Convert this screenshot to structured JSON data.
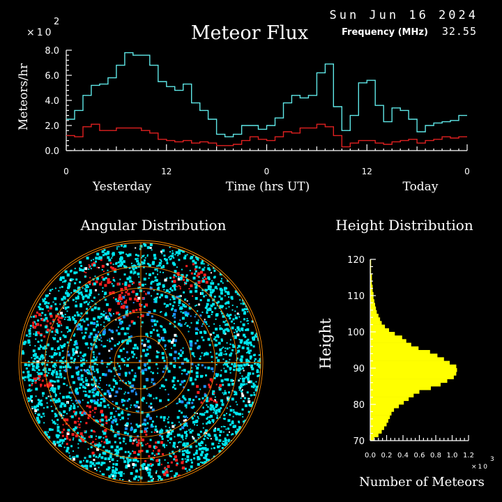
{
  "header": {
    "date": "Sun Jun 16 2024",
    "title": "Meteor Flux",
    "frequency_label": "Frequency (MHz)",
    "frequency_value": "32.55",
    "exponent_base": "×10",
    "exponent_power": "2"
  },
  "colors": {
    "background": "#000000",
    "axis": "#ffffff",
    "series_primary": "#5fe8e8",
    "series_secondary": "#e02020",
    "histogram": "#ffff00",
    "polar_fill": "#00e5ee",
    "polar_secondary": "#1e90ff",
    "polar_tertiary": "#ff2020",
    "polar_grid": "#ff8c00"
  },
  "flux_chart": {
    "ylabel": "Meteors/hr",
    "xlabel": "Time (hrs UT)",
    "yesterday_label": "Yesterday",
    "today_label": "Today",
    "x_ticks": [
      "0",
      "12",
      "0",
      "12",
      "0"
    ],
    "y_ticks": [
      "0.0",
      "2.0",
      "4.0",
      "6.0",
      "8.0"
    ]
  },
  "angular": {
    "title": "Angular Distribution"
  },
  "height_chart": {
    "title": "Height Distribution",
    "ylabel": "Height",
    "xlabel": "Number of Meteors",
    "y_ticks": [
      "70",
      "80",
      "90",
      "100",
      "110",
      "120"
    ],
    "x_ticks": [
      "0.0",
      "0.2",
      "0.4",
      "0.6",
      "0.8",
      "1.0",
      "1.2"
    ],
    "x_exponent_base": "×10",
    "x_exponent_power": "3"
  },
  "chart_data": [
    {
      "type": "line",
      "title": "Meteor Flux",
      "xlabel": "Time (hrs UT)",
      "ylabel": "Meteors/hr",
      "y_multiplier": 100,
      "xlim": [
        0,
        48
      ],
      "ylim": [
        0,
        8
      ],
      "x": [
        0,
        1,
        2,
        3,
        4,
        5,
        6,
        7,
        8,
        9,
        10,
        11,
        12,
        13,
        14,
        15,
        16,
        17,
        18,
        19,
        20,
        21,
        22,
        23,
        24,
        25,
        26,
        27,
        28,
        29,
        30,
        31,
        32,
        33,
        34,
        35,
        36,
        37,
        38,
        39,
        40,
        41,
        42,
        43,
        44,
        45,
        46,
        47
      ],
      "series": [
        {
          "values": [
            2.5,
            3.2,
            4.4,
            5.2,
            5.3,
            5.8,
            6.8,
            7.8,
            7.6,
            7.6,
            6.8,
            5.5,
            5.1,
            4.8,
            5.3,
            3.8,
            3.2,
            2.5,
            1.3,
            1.1,
            1.3,
            2.0,
            2.0,
            1.7,
            2.0,
            2.6,
            3.8,
            4.4,
            4.2,
            4.4,
            6.2,
            6.9,
            3.5,
            1.6,
            2.8,
            5.4,
            5.6,
            3.6,
            2.3,
            3.4,
            3.2,
            2.5,
            1.5,
            2.0,
            2.2,
            2.3,
            2.4,
            2.8
          ]
        },
        {
          "values": [
            1.2,
            1.1,
            1.9,
            2.1,
            1.6,
            1.6,
            1.8,
            1.8,
            1.8,
            1.6,
            1.4,
            0.9,
            0.8,
            0.7,
            0.8,
            0.6,
            0.7,
            0.6,
            0.4,
            0.4,
            0.5,
            0.8,
            1.1,
            0.9,
            0.8,
            1.1,
            1.5,
            1.4,
            1.8,
            1.8,
            2.1,
            1.9,
            1.2,
            0.3,
            0.6,
            0.8,
            0.8,
            0.6,
            0.5,
            0.7,
            0.8,
            0.9,
            0.6,
            0.8,
            0.9,
            1.1,
            1.0,
            1.1
          ]
        }
      ]
    },
    {
      "type": "bar",
      "orientation": "horizontal",
      "title": "Height Distribution",
      "xlabel": "Number of Meteors",
      "ylabel": "Height",
      "x_multiplier": 1000,
      "xlim": [
        0,
        1.2
      ],
      "ylim": [
        70,
        120
      ],
      "categories": [
        70,
        71,
        72,
        73,
        74,
        75,
        76,
        77,
        78,
        79,
        80,
        81,
        82,
        83,
        84,
        85,
        86,
        87,
        88,
        89,
        90,
        91,
        92,
        93,
        94,
        95,
        96,
        97,
        98,
        99,
        100,
        101,
        102,
        103,
        104,
        105,
        106,
        107,
        108,
        109,
        110,
        111,
        112,
        113,
        114,
        115,
        116,
        117,
        118,
        119
      ],
      "values": [
        0.05,
        0.1,
        0.14,
        0.17,
        0.2,
        0.22,
        0.24,
        0.26,
        0.29,
        0.35,
        0.41,
        0.47,
        0.53,
        0.6,
        0.74,
        0.86,
        0.94,
        1.02,
        1.05,
        1.06,
        1.05,
        0.97,
        0.9,
        0.82,
        0.73,
        0.59,
        0.5,
        0.44,
        0.39,
        0.3,
        0.23,
        0.18,
        0.14,
        0.12,
        0.1,
        0.08,
        0.07,
        0.06,
        0.05,
        0.04,
        0.04,
        0.03,
        0.03,
        0.02,
        0.02,
        0.02,
        0.01,
        0.01,
        0.01,
        0.01
      ]
    }
  ]
}
